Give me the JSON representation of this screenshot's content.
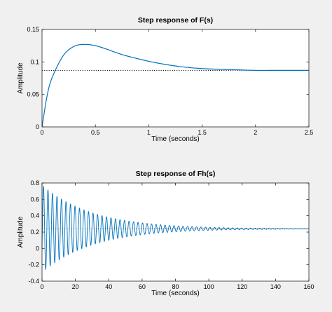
{
  "chart_data": [
    {
      "type": "line",
      "title": "Step response of F(s)",
      "xlabel": "Time (seconds)",
      "ylabel": "Amplitude",
      "xlim": [
        0,
        2.5
      ],
      "ylim": [
        0,
        0.15
      ],
      "xticks": [
        "0",
        "0.5",
        "1",
        "1.5",
        "2",
        "2.5"
      ],
      "yticks": [
        "0",
        "0.05",
        "0.1",
        "0.15"
      ],
      "grid": false,
      "series": [
        {
          "x": [
            0,
            0.05,
            0.1,
            0.2,
            0.3,
            0.4,
            0.5,
            0.6,
            0.7,
            0.8,
            1.0,
            1.2,
            1.4,
            1.6,
            1.8,
            2.0,
            2.2,
            2.5
          ],
          "values": [
            0,
            0.05,
            0.078,
            0.11,
            0.124,
            0.127,
            0.125,
            0.12,
            0.114,
            0.109,
            0.101,
            0.095,
            0.091,
            0.089,
            0.088,
            0.087,
            0.087,
            0.087
          ]
        }
      ],
      "reference_lines": [
        {
          "value": 0.087,
          "style": "dotted"
        }
      ],
      "colors": {
        "line": "#0072BD",
        "reference": "#000000"
      }
    },
    {
      "type": "line",
      "title": "Step response of Fh(s)",
      "xlabel": "Time (seconds)",
      "ylabel": "Amplitude",
      "xlim": [
        0,
        160
      ],
      "ylim": [
        -0.4,
        0.8
      ],
      "xticks": [
        "0",
        "20",
        "40",
        "60",
        "80",
        "100",
        "120",
        "140",
        "160"
      ],
      "yticks": [
        "-0.4",
        "-0.2",
        "0",
        "0.2",
        "0.4",
        "0.6",
        "0.8"
      ],
      "grid": false,
      "description": "damped oscillation",
      "series": [
        {
          "final_value": 0.24,
          "initial_amplitude": 0.48,
          "oscillation_period": 2.7,
          "decay_time_constant": 30
        }
      ],
      "reference_lines": [
        {
          "value": 0.24,
          "style": "dotted"
        }
      ],
      "colors": {
        "line": "#0072BD",
        "reference": "#000000"
      }
    }
  ]
}
